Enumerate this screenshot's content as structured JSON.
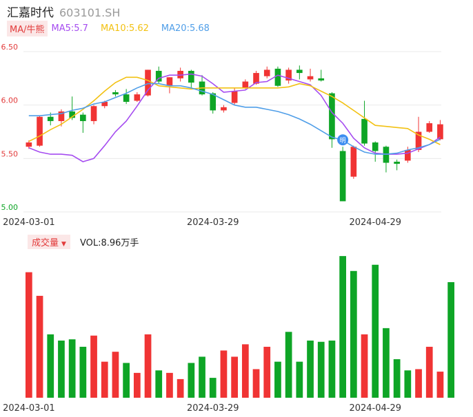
{
  "header": {
    "name": "汇嘉时代",
    "code": "603101.SH"
  },
  "ma_legend": {
    "type_label": "MA/牛熊",
    "items": [
      {
        "label": "MA5:5.7",
        "color": "#a54cf0"
      },
      {
        "label": "MA10:5.62",
        "color": "#f2c112"
      },
      {
        "label": "MA20:5.68",
        "color": "#4f9ee8"
      }
    ]
  },
  "volume_legend": {
    "button_label": "成交量",
    "value_label": "VOL:8.96万手"
  },
  "colors": {
    "up": "#f03434",
    "down": "#0ea526",
    "grid": "#e9e9e9",
    "axis_text": "#e23b3b",
    "date_text": "#333333"
  },
  "chart_data": [
    {
      "type": "candlestick",
      "ylim": [
        5.0,
        6.5
      ],
      "yticks": [
        "6.50",
        "6.00",
        "5.50",
        "5.00"
      ],
      "x_tick_labels": [
        {
          "index": 0,
          "label": "2024-03-01"
        },
        {
          "index": 17,
          "label": "2024-03-29"
        },
        {
          "index": 32,
          "label": "2024-04-29"
        }
      ],
      "candles": [
        {
          "o": 5.61,
          "c": 5.65,
          "h": 5.67,
          "l": 5.59
        },
        {
          "o": 5.62,
          "c": 5.89,
          "h": 5.9,
          "l": 5.61
        },
        {
          "o": 5.89,
          "c": 5.85,
          "h": 5.93,
          "l": 5.81
        },
        {
          "o": 5.85,
          "c": 5.94,
          "h": 5.96,
          "l": 5.8
        },
        {
          "o": 5.94,
          "c": 5.88,
          "h": 6.08,
          "l": 5.86
        },
        {
          "o": 5.91,
          "c": 5.85,
          "h": 5.93,
          "l": 5.74
        },
        {
          "o": 5.85,
          "c": 5.99,
          "h": 6.0,
          "l": 5.82
        },
        {
          "o": 5.99,
          "c": 6.03,
          "h": 6.04,
          "l": 5.97
        },
        {
          "o": 6.12,
          "c": 6.1,
          "h": 6.14,
          "l": 6.08
        },
        {
          "o": 6.1,
          "c": 6.03,
          "h": 6.15,
          "l": 6.01
        },
        {
          "o": 6.04,
          "c": 6.1,
          "h": 6.12,
          "l": 6.03
        },
        {
          "o": 6.09,
          "c": 6.33,
          "h": 6.33,
          "l": 6.08
        },
        {
          "o": 6.32,
          "c": 6.22,
          "h": 6.36,
          "l": 6.2
        },
        {
          "o": 6.18,
          "c": 6.26,
          "h": 6.26,
          "l": 6.11
        },
        {
          "o": 6.25,
          "c": 6.32,
          "h": 6.35,
          "l": 6.22
        },
        {
          "o": 6.32,
          "c": 6.21,
          "h": 6.33,
          "l": 6.16
        },
        {
          "o": 6.22,
          "c": 6.1,
          "h": 6.28,
          "l": 6.09
        },
        {
          "o": 6.11,
          "c": 5.95,
          "h": 6.12,
          "l": 5.92
        },
        {
          "o": 5.95,
          "c": 5.98,
          "h": 6.0,
          "l": 5.93
        },
        {
          "o": 6.02,
          "c": 6.13,
          "h": 6.16,
          "l": 6.0
        },
        {
          "o": 6.16,
          "c": 6.22,
          "h": 6.24,
          "l": 6.15
        },
        {
          "o": 6.2,
          "c": 6.3,
          "h": 6.32,
          "l": 6.19
        },
        {
          "o": 6.27,
          "c": 6.33,
          "h": 6.36,
          "l": 6.25
        },
        {
          "o": 6.34,
          "c": 6.18,
          "h": 6.36,
          "l": 6.17
        },
        {
          "o": 6.23,
          "c": 6.33,
          "h": 6.35,
          "l": 6.2
        },
        {
          "o": 6.33,
          "c": 6.3,
          "h": 6.37,
          "l": 6.24
        },
        {
          "o": 6.24,
          "c": 6.27,
          "h": 6.34,
          "l": 6.22
        },
        {
          "o": 6.25,
          "c": 6.23,
          "h": 6.33,
          "l": 6.22
        },
        {
          "o": 6.11,
          "c": 5.68,
          "h": 6.12,
          "l": 5.6
        },
        {
          "o": 5.57,
          "c": 5.1,
          "h": 5.61,
          "l": 5.1
        },
        {
          "o": 5.33,
          "c": 5.61,
          "h": 5.62,
          "l": 5.31
        },
        {
          "o": 5.87,
          "c": 5.64,
          "h": 6.04,
          "l": 5.62
        },
        {
          "o": 5.65,
          "c": 5.57,
          "h": 5.66,
          "l": 5.47
        },
        {
          "o": 5.61,
          "c": 5.46,
          "h": 5.62,
          "l": 5.37
        },
        {
          "o": 5.47,
          "c": 5.45,
          "h": 5.49,
          "l": 5.39
        },
        {
          "o": 5.48,
          "c": 5.58,
          "h": 5.61,
          "l": 5.46
        },
        {
          "o": 5.58,
          "c": 5.75,
          "h": 5.89,
          "l": 5.56
        },
        {
          "o": 5.75,
          "c": 5.83,
          "h": 5.85,
          "l": 5.74
        },
        {
          "o": 5.68,
          "c": 5.82,
          "h": 5.86,
          "l": 5.67
        }
      ],
      "ma_lines": [
        {
          "name": "MA5",
          "color": "#a54cf0",
          "values": [
            5.67,
            5.64,
            5.6,
            5.56,
            5.54,
            5.54,
            5.53,
            5.47,
            5.5,
            5.62,
            5.75,
            5.85,
            5.99,
            6.14,
            6.25,
            6.28,
            6.28,
            6.29,
            6.27,
            6.2,
            6.12,
            6.13,
            6.14,
            6.21,
            6.22,
            6.28,
            6.25,
            6.22,
            6.19,
            6.09,
            5.93,
            5.83,
            5.69,
            5.6,
            5.55,
            5.54,
            5.54,
            5.55,
            5.59,
            5.63,
            5.7
          ]
        },
        {
          "name": "MA10",
          "color": "#f2c112",
          "values": [
            5.63,
            5.57,
            5.58,
            5.61,
            5.66,
            5.71,
            5.77,
            5.82,
            5.89,
            5.96,
            6.04,
            6.13,
            6.21,
            6.26,
            6.26,
            6.23,
            6.18,
            6.17,
            6.16,
            6.15,
            6.16,
            6.16,
            6.16,
            6.16,
            6.16,
            6.16,
            6.16,
            6.16,
            6.17,
            6.2,
            6.18,
            6.13,
            6.08,
            6.02,
            5.95,
            5.88,
            5.81,
            5.8,
            5.79,
            5.78,
            5.72,
            5.68,
            5.63
          ]
        },
        {
          "name": "MA20",
          "color": "#4f9ee8",
          "values": [
            5.89,
            5.89,
            5.9,
            5.9,
            5.91,
            5.92,
            5.95,
            5.97,
            6.01,
            6.03,
            6.07,
            6.11,
            6.16,
            6.2,
            6.2,
            6.18,
            6.18,
            6.16,
            6.13,
            6.1,
            6.05,
            6.0,
            5.98,
            5.98,
            5.96,
            5.94,
            5.91,
            5.87,
            5.82,
            5.76,
            5.7,
            5.67,
            5.61,
            5.56,
            5.54,
            5.54,
            5.55,
            5.58,
            5.6,
            5.63,
            5.68
          ]
        }
      ],
      "marker": {
        "index": 29,
        "label": "明"
      }
    },
    {
      "type": "bar",
      "title": "成交量",
      "x_tick_labels": [
        {
          "index": 0,
          "label": "2024-03-01"
        },
        {
          "index": 17,
          "label": "2024-03-29"
        },
        {
          "index": 32,
          "label": "2024-04-29"
        }
      ],
      "values": [
        10.1,
        8.2,
        5.1,
        4.6,
        4.7,
        4.1,
        5.0,
        2.9,
        3.7,
        2.8,
        2.0,
        5.1,
        2.2,
        2.0,
        1.5,
        2.8,
        3.3,
        1.6,
        3.8,
        3.3,
        4.3,
        2.3,
        4.1,
        2.9,
        5.3,
        2.9,
        4.6,
        4.5,
        4.6,
        11.4,
        10.2,
        5.1,
        10.7,
        5.6,
        3.1,
        2.2,
        2.3,
        4.1,
        2.1,
        9.3
      ],
      "directions": [
        "up",
        "up",
        "down",
        "down",
        "down",
        "down",
        "up",
        "up",
        "up",
        "down",
        "up",
        "up",
        "down",
        "up",
        "up",
        "down",
        "down",
        "down",
        "up",
        "up",
        "up",
        "up",
        "up",
        "down",
        "down",
        "down",
        "down",
        "down",
        "down",
        "down",
        "down",
        "up",
        "down",
        "down",
        "down",
        "down",
        "up",
        "up",
        "up",
        "down"
      ]
    }
  ]
}
